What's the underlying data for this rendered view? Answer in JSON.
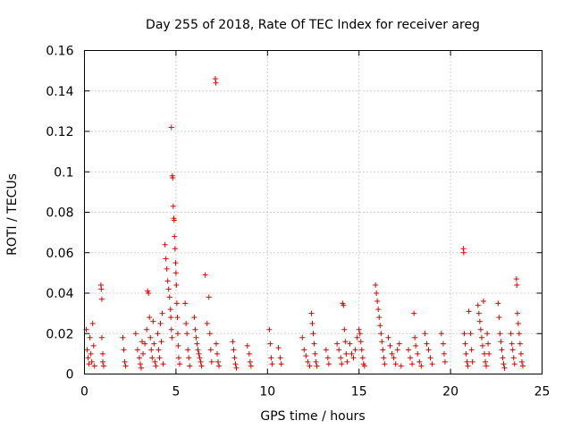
{
  "chart_data": {
    "type": "scatter",
    "title": "Day 255 of 2018, Rate Of TEC Index for receiver areg",
    "xlabel": "GPS time / hours",
    "ylabel": "ROTI / TECUs",
    "xlim": [
      0,
      25
    ],
    "ylim": [
      0,
      0.16
    ],
    "xticks": [
      0,
      5,
      10,
      15,
      20,
      25
    ],
    "xtick_labels": [
      "0",
      "5",
      "10",
      "15",
      "20",
      "25"
    ],
    "yticks": [
      0,
      0.02,
      0.04,
      0.06,
      0.08,
      0.1,
      0.12,
      0.14,
      0.16
    ],
    "ytick_labels": [
      "0",
      "0.02",
      "0.04",
      "0.06",
      "0.08",
      "0.1",
      "0.12",
      "0.14",
      "0.16"
    ],
    "grid": true,
    "marker": "plus",
    "color": "#e00000",
    "series": [
      {
        "name": "ROTI",
        "points": [
          [
            0.1,
            0.022
          ],
          [
            0.15,
            0.012
          ],
          [
            0.2,
            0.008
          ],
          [
            0.25,
            0.005
          ],
          [
            0.3,
            0.018
          ],
          [
            0.35,
            0.01
          ],
          [
            0.4,
            0.006
          ],
          [
            0.45,
            0.025
          ],
          [
            0.5,
            0.014
          ],
          [
            0.55,
            0.004
          ],
          [
            0.9,
            0.044
          ],
          [
            0.92,
            0.042
          ],
          [
            0.95,
            0.037
          ],
          [
            0.95,
            0.018
          ],
          [
            1.0,
            0.01
          ],
          [
            1.0,
            0.006
          ],
          [
            1.05,
            0.004
          ],
          [
            2.1,
            0.018
          ],
          [
            2.15,
            0.012
          ],
          [
            2.2,
            0.006
          ],
          [
            2.25,
            0.004
          ],
          [
            2.8,
            0.02
          ],
          [
            2.9,
            0.012
          ],
          [
            3.0,
            0.008
          ],
          [
            3.05,
            0.005
          ],
          [
            3.1,
            0.003
          ],
          [
            3.15,
            0.016
          ],
          [
            3.2,
            0.01
          ],
          [
            3.3,
            0.015
          ],
          [
            3.4,
            0.022
          ],
          [
            3.45,
            0.041
          ],
          [
            3.5,
            0.04
          ],
          [
            3.55,
            0.028
          ],
          [
            3.6,
            0.018
          ],
          [
            3.65,
            0.012
          ],
          [
            3.7,
            0.008
          ],
          [
            3.75,
            0.026
          ],
          [
            3.8,
            0.015
          ],
          [
            3.85,
            0.006
          ],
          [
            3.9,
            0.004
          ],
          [
            4.0,
            0.02
          ],
          [
            4.05,
            0.012
          ],
          [
            4.1,
            0.008
          ],
          [
            4.15,
            0.025
          ],
          [
            4.2,
            0.016
          ],
          [
            4.25,
            0.03
          ],
          [
            4.3,
            0.005
          ],
          [
            4.4,
            0.064
          ],
          [
            4.45,
            0.057
          ],
          [
            4.5,
            0.052
          ],
          [
            4.55,
            0.046
          ],
          [
            4.6,
            0.042
          ],
          [
            4.65,
            0.038
          ],
          [
            4.7,
            0.032
          ],
          [
            4.72,
            0.028
          ],
          [
            4.75,
            0.022
          ],
          [
            4.78,
            0.018
          ],
          [
            4.75,
            0.122
          ],
          [
            4.8,
            0.098
          ],
          [
            4.82,
            0.097
          ],
          [
            4.85,
            0.083
          ],
          [
            4.88,
            0.077
          ],
          [
            4.9,
            0.076
          ],
          [
            4.92,
            0.068
          ],
          [
            4.95,
            0.062
          ],
          [
            4.98,
            0.055
          ],
          [
            5.0,
            0.05
          ],
          [
            5.02,
            0.044
          ],
          [
            5.05,
            0.035
          ],
          [
            5.08,
            0.028
          ],
          [
            5.1,
            0.02
          ],
          [
            5.12,
            0.014
          ],
          [
            5.15,
            0.008
          ],
          [
            5.2,
            0.005
          ],
          [
            5.5,
            0.035
          ],
          [
            5.55,
            0.025
          ],
          [
            5.6,
            0.02
          ],
          [
            5.65,
            0.012
          ],
          [
            5.7,
            0.008
          ],
          [
            5.75,
            0.004
          ],
          [
            6.0,
            0.028
          ],
          [
            6.05,
            0.022
          ],
          [
            6.1,
            0.018
          ],
          [
            6.15,
            0.015
          ],
          [
            6.2,
            0.012
          ],
          [
            6.25,
            0.01
          ],
          [
            6.3,
            0.008
          ],
          [
            6.35,
            0.006
          ],
          [
            6.4,
            0.004
          ],
          [
            6.6,
            0.049
          ],
          [
            6.7,
            0.025
          ],
          [
            6.8,
            0.038
          ],
          [
            6.85,
            0.02
          ],
          [
            6.9,
            0.012
          ],
          [
            6.95,
            0.006
          ],
          [
            7.15,
            0.146
          ],
          [
            7.18,
            0.144
          ],
          [
            7.2,
            0.015
          ],
          [
            7.25,
            0.01
          ],
          [
            7.3,
            0.006
          ],
          [
            7.35,
            0.004
          ],
          [
            8.1,
            0.016
          ],
          [
            8.15,
            0.012
          ],
          [
            8.2,
            0.008
          ],
          [
            8.25,
            0.005
          ],
          [
            8.3,
            0.003
          ],
          [
            8.9,
            0.014
          ],
          [
            9.0,
            0.01
          ],
          [
            9.05,
            0.006
          ],
          [
            9.1,
            0.004
          ],
          [
            10.1,
            0.022
          ],
          [
            10.15,
            0.015
          ],
          [
            10.2,
            0.008
          ],
          [
            10.25,
            0.005
          ],
          [
            10.6,
            0.013
          ],
          [
            10.7,
            0.008
          ],
          [
            10.75,
            0.005
          ],
          [
            11.9,
            0.018
          ],
          [
            12.0,
            0.012
          ],
          [
            12.1,
            0.009
          ],
          [
            12.2,
            0.006
          ],
          [
            12.3,
            0.004
          ],
          [
            12.4,
            0.03
          ],
          [
            12.45,
            0.025
          ],
          [
            12.5,
            0.02
          ],
          [
            12.55,
            0.015
          ],
          [
            12.6,
            0.01
          ],
          [
            12.65,
            0.006
          ],
          [
            12.7,
            0.004
          ],
          [
            13.2,
            0.012
          ],
          [
            13.3,
            0.008
          ],
          [
            13.35,
            0.005
          ],
          [
            13.8,
            0.015
          ],
          [
            13.9,
            0.012
          ],
          [
            14.0,
            0.008
          ],
          [
            14.05,
            0.005
          ],
          [
            14.1,
            0.035
          ],
          [
            14.15,
            0.034
          ],
          [
            14.2,
            0.022
          ],
          [
            14.25,
            0.016
          ],
          [
            14.3,
            0.01
          ],
          [
            14.35,
            0.006
          ],
          [
            14.5,
            0.015
          ],
          [
            14.6,
            0.01
          ],
          [
            14.7,
            0.008
          ],
          [
            14.8,
            0.012
          ],
          [
            14.9,
            0.018
          ],
          [
            15.0,
            0.022
          ],
          [
            15.05,
            0.02
          ],
          [
            15.1,
            0.016
          ],
          [
            15.15,
            0.012
          ],
          [
            15.2,
            0.008
          ],
          [
            15.25,
            0.005
          ],
          [
            15.3,
            0.004
          ],
          [
            15.9,
            0.044
          ],
          [
            15.95,
            0.04
          ],
          [
            16.0,
            0.036
          ],
          [
            16.05,
            0.032
          ],
          [
            16.1,
            0.028
          ],
          [
            16.15,
            0.024
          ],
          [
            16.2,
            0.02
          ],
          [
            16.25,
            0.016
          ],
          [
            16.3,
            0.012
          ],
          [
            16.35,
            0.008
          ],
          [
            16.4,
            0.005
          ],
          [
            16.6,
            0.018
          ],
          [
            16.7,
            0.014
          ],
          [
            16.8,
            0.01
          ],
          [
            16.9,
            0.008
          ],
          [
            17.0,
            0.005
          ],
          [
            17.1,
            0.012
          ],
          [
            17.2,
            0.015
          ],
          [
            17.3,
            0.004
          ],
          [
            17.7,
            0.012
          ],
          [
            17.8,
            0.008
          ],
          [
            17.9,
            0.005
          ],
          [
            18.0,
            0.03
          ],
          [
            18.05,
            0.018
          ],
          [
            18.1,
            0.014
          ],
          [
            18.2,
            0.01
          ],
          [
            18.3,
            0.006
          ],
          [
            18.4,
            0.004
          ],
          [
            18.6,
            0.02
          ],
          [
            18.7,
            0.015
          ],
          [
            18.8,
            0.012
          ],
          [
            18.9,
            0.008
          ],
          [
            19.0,
            0.005
          ],
          [
            19.5,
            0.02
          ],
          [
            19.6,
            0.015
          ],
          [
            19.65,
            0.01
          ],
          [
            19.7,
            0.006
          ],
          [
            20.7,
            0.062
          ],
          [
            20.72,
            0.06
          ],
          [
            20.75,
            0.02
          ],
          [
            20.8,
            0.015
          ],
          [
            20.85,
            0.01
          ],
          [
            20.9,
            0.006
          ],
          [
            20.95,
            0.004
          ],
          [
            21.0,
            0.031
          ],
          [
            21.1,
            0.02
          ],
          [
            21.15,
            0.012
          ],
          [
            21.2,
            0.006
          ],
          [
            21.5,
            0.034
          ],
          [
            21.55,
            0.03
          ],
          [
            21.6,
            0.026
          ],
          [
            21.65,
            0.022
          ],
          [
            21.7,
            0.018
          ],
          [
            21.75,
            0.014
          ],
          [
            21.8,
            0.036
          ],
          [
            21.85,
            0.01
          ],
          [
            21.9,
            0.006
          ],
          [
            21.95,
            0.004
          ],
          [
            22.0,
            0.02
          ],
          [
            22.05,
            0.015
          ],
          [
            22.1,
            0.01
          ],
          [
            22.6,
            0.035
          ],
          [
            22.65,
            0.028
          ],
          [
            22.7,
            0.02
          ],
          [
            22.75,
            0.016
          ],
          [
            22.8,
            0.012
          ],
          [
            22.85,
            0.008
          ],
          [
            22.9,
            0.005
          ],
          [
            22.95,
            0.003
          ],
          [
            23.3,
            0.02
          ],
          [
            23.35,
            0.015
          ],
          [
            23.4,
            0.012
          ],
          [
            23.45,
            0.008
          ],
          [
            23.5,
            0.005
          ],
          [
            23.6,
            0.047
          ],
          [
            23.62,
            0.044
          ],
          [
            23.65,
            0.03
          ],
          [
            23.7,
            0.025
          ],
          [
            23.75,
            0.02
          ],
          [
            23.8,
            0.015
          ],
          [
            23.85,
            0.01
          ],
          [
            23.9,
            0.006
          ],
          [
            23.95,
            0.004
          ]
        ]
      }
    ]
  }
}
